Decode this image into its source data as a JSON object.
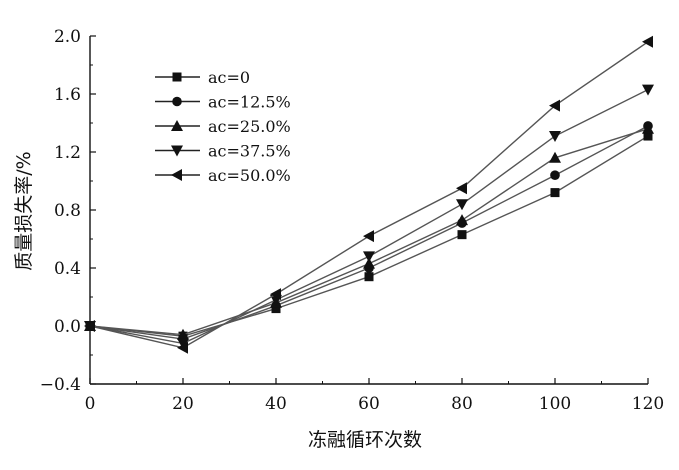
{
  "chart_data": {
    "type": "line",
    "title": "",
    "xlabel": "冻融循环次数",
    "ylabel": "质量损失率/%",
    "x": [
      0,
      20,
      40,
      60,
      80,
      100,
      120
    ],
    "xlim": [
      0,
      120
    ],
    "ylim": [
      -0.4,
      2.0
    ],
    "x_ticks": [
      "0",
      "20",
      "40",
      "60",
      "80",
      "100",
      "120"
    ],
    "y_ticks": [
      "−0.4",
      "0.0",
      "0.4",
      "0.8",
      "1.2",
      "1.6",
      "2.0"
    ],
    "grid": false,
    "legend_position": "top-left",
    "series": [
      {
        "name": "ac=0",
        "marker": "square",
        "values": [
          0.0,
          -0.07,
          0.12,
          0.34,
          0.63,
          0.92,
          1.31
        ]
      },
      {
        "name": "ac=12.5%",
        "marker": "circle",
        "values": [
          0.0,
          -0.09,
          0.14,
          0.4,
          0.71,
          1.04,
          1.38
        ]
      },
      {
        "name": "ac=25.0%",
        "marker": "triangle-up",
        "values": [
          0.0,
          -0.06,
          0.16,
          0.43,
          0.73,
          1.16,
          1.36
        ]
      },
      {
        "name": "ac=37.5%",
        "marker": "triangle-down",
        "values": [
          0.0,
          -0.12,
          0.18,
          0.48,
          0.84,
          1.31,
          1.63
        ]
      },
      {
        "name": "ac=50.0%",
        "marker": "triangle-left",
        "values": [
          0.0,
          -0.15,
          0.22,
          0.62,
          0.95,
          1.52,
          1.96
        ]
      }
    ],
    "colors": {
      "line": "#555555",
      "marker": "#111111",
      "axis": "#111111"
    }
  }
}
